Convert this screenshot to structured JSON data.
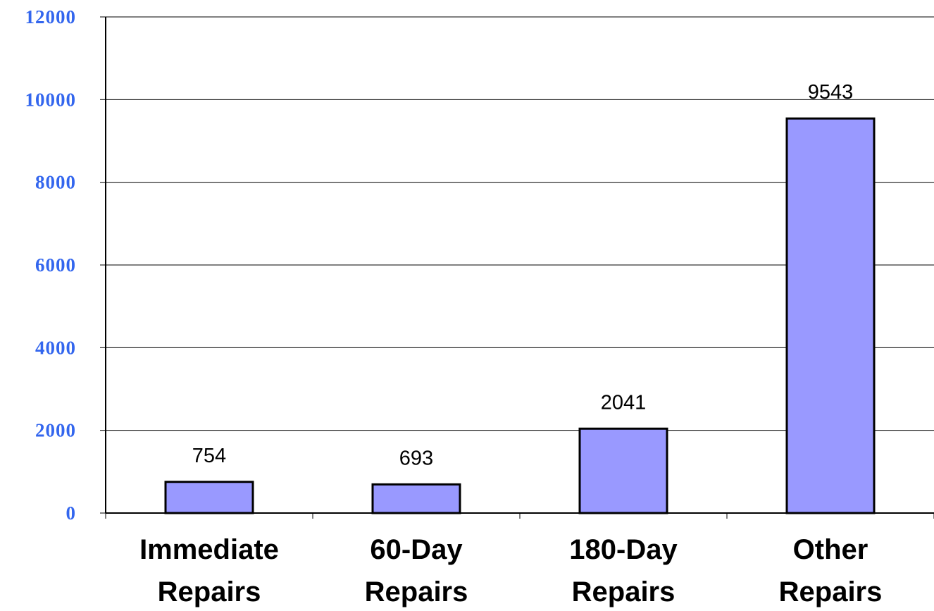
{
  "chart_data": {
    "type": "bar",
    "categories": [
      [
        "Immediate",
        "Repairs"
      ],
      [
        "60-Day",
        "Repairs"
      ],
      [
        "180-Day",
        "Repairs"
      ],
      [
        "Other",
        "Repairs"
      ]
    ],
    "values": [
      754,
      693,
      2041,
      9543
    ],
    "data_labels": [
      "754",
      "693",
      "2041",
      "9543"
    ],
    "ylim": [
      0,
      12000
    ],
    "yticks": [
      0,
      2000,
      4000,
      6000,
      8000,
      10000,
      12000
    ],
    "ytick_labels": [
      "0",
      "2000",
      "4000",
      "6000",
      "8000",
      "10000",
      "12000"
    ],
    "grid": true,
    "legend": "none",
    "colors": {
      "bar_fill": "#9999ff",
      "bar_stroke": "#000000",
      "axis": "#000000",
      "grid": "#000000",
      "ytick_text": "#3366ee"
    }
  }
}
